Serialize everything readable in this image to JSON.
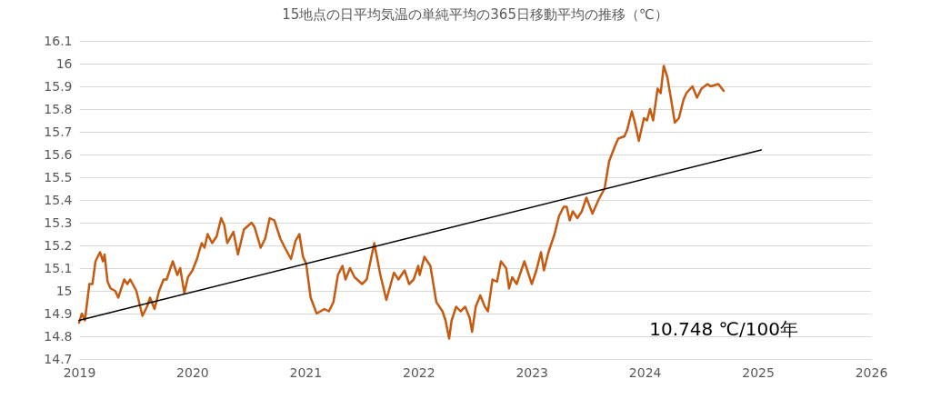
{
  "chart_data": {
    "type": "line",
    "title": "15地点の日平均気温の単純平均の365日移動平均の推移（℃）",
    "xlim": [
      2019,
      2026
    ],
    "xticks": [
      2019,
      2020,
      2021,
      2022,
      2023,
      2024,
      2025,
      2026
    ],
    "ylim": [
      14.7,
      16.1
    ],
    "yticks": [
      14.7,
      14.8,
      14.9,
      15,
      15.1,
      15.2,
      15.3,
      15.4,
      15.5,
      15.6,
      15.7,
      15.8,
      15.9,
      16,
      16.1
    ],
    "grid": "y",
    "marker": "none",
    "line_style": "solid",
    "annotations": [
      "10.748 ℃/100年"
    ],
    "series": [
      {
        "color": "#c55a11",
        "x": [
          2019.0,
          2019.024,
          2019.051,
          2019.091,
          2019.118,
          2019.145,
          2019.185,
          2019.211,
          2019.225,
          2019.252,
          2019.279,
          2019.319,
          2019.346,
          2019.399,
          2019.426,
          2019.452,
          2019.506,
          2019.56,
          2019.6,
          2019.627,
          2019.667,
          2019.707,
          2019.747,
          2019.774,
          2019.828,
          2019.868,
          2019.894,
          2019.93,
          2019.962,
          2020.002,
          2020.042,
          2020.083,
          2020.109,
          2020.136,
          2020.176,
          2020.216,
          2020.256,
          2020.283,
          2020.31,
          2020.364,
          2020.404,
          2020.457,
          2020.525,
          2020.551,
          2020.605,
          2020.645,
          2020.685,
          2020.726,
          2020.779,
          2020.819,
          2020.873,
          2020.913,
          2020.947,
          2020.979,
          2021.007,
          2021.047,
          2021.1,
          2021.167,
          2021.208,
          2021.248,
          2021.288,
          2021.328,
          2021.355,
          2021.395,
          2021.435,
          2021.502,
          2021.542,
          2021.609,
          2021.663,
          2021.716,
          2021.783,
          2021.823,
          2021.877,
          2021.917,
          2021.958,
          2021.998,
          2022.011,
          2022.052,
          2022.105,
          2022.158,
          2022.212,
          2022.239,
          2022.271,
          2022.293,
          2022.333,
          2022.372,
          2022.413,
          2022.453,
          2022.474,
          2022.506,
          2022.546,
          2022.587,
          2022.614,
          2022.654,
          2022.694,
          2022.729,
          2022.775,
          2022.801,
          2022.828,
          2022.868,
          2022.936,
          2023.002,
          2023.042,
          2023.083,
          2023.109,
          2023.149,
          2023.203,
          2023.243,
          2023.284,
          2023.31,
          2023.337,
          2023.364,
          2023.404,
          2023.444,
          2023.484,
          2023.538,
          2023.591,
          2023.645,
          2023.685,
          2023.739,
          2023.766,
          2023.82,
          2023.846,
          2023.886,
          2023.913,
          2023.948,
          2023.993,
          2024.02,
          2024.047,
          2024.074,
          2024.114,
          2024.141,
          2024.168,
          2024.2,
          2024.234,
          2024.266,
          2024.302,
          2024.342,
          2024.368,
          2024.422,
          2024.462,
          2024.502,
          2024.555,
          2024.582,
          2024.651,
          2024.698
        ],
        "values": [
          14.86,
          14.9,
          14.87,
          15.03,
          15.03,
          15.13,
          15.17,
          15.13,
          15.16,
          15.04,
          15.01,
          15.0,
          14.97,
          15.05,
          15.03,
          15.05,
          15.0,
          14.89,
          14.93,
          14.97,
          14.92,
          15.0,
          15.05,
          15.05,
          15.13,
          15.07,
          15.1,
          14.99,
          15.06,
          15.09,
          15.14,
          15.21,
          15.19,
          15.25,
          15.21,
          15.24,
          15.32,
          15.29,
          15.21,
          15.26,
          15.16,
          15.27,
          15.3,
          15.28,
          15.19,
          15.23,
          15.32,
          15.31,
          15.23,
          15.19,
          15.14,
          15.22,
          15.25,
          15.15,
          15.12,
          14.97,
          14.9,
          14.92,
          14.91,
          14.95,
          15.07,
          15.11,
          15.05,
          15.1,
          15.06,
          15.03,
          15.05,
          15.21,
          15.07,
          14.96,
          15.08,
          15.05,
          15.09,
          15.03,
          15.05,
          15.11,
          15.07,
          15.15,
          15.11,
          14.95,
          14.91,
          14.87,
          14.79,
          14.87,
          14.93,
          14.91,
          14.93,
          14.88,
          14.82,
          14.93,
          14.98,
          14.93,
          14.91,
          15.05,
          15.04,
          15.13,
          15.1,
          15.01,
          15.06,
          15.03,
          15.13,
          15.03,
          15.09,
          15.17,
          15.09,
          15.17,
          15.25,
          15.33,
          15.37,
          15.37,
          15.31,
          15.35,
          15.32,
          15.35,
          15.41,
          15.34,
          15.4,
          15.45,
          15.57,
          15.64,
          15.67,
          15.68,
          15.71,
          15.79,
          15.74,
          15.66,
          15.76,
          15.75,
          15.8,
          15.75,
          15.89,
          15.87,
          15.99,
          15.94,
          15.84,
          15.74,
          15.76,
          15.84,
          15.87,
          15.9,
          15.85,
          15.89,
          15.91,
          15.9,
          15.91,
          15.88
        ]
      },
      {
        "color": "#000000",
        "x": [
          2019.0,
          2025.03
        ],
        "values": [
          14.87,
          15.62
        ]
      }
    ]
  }
}
